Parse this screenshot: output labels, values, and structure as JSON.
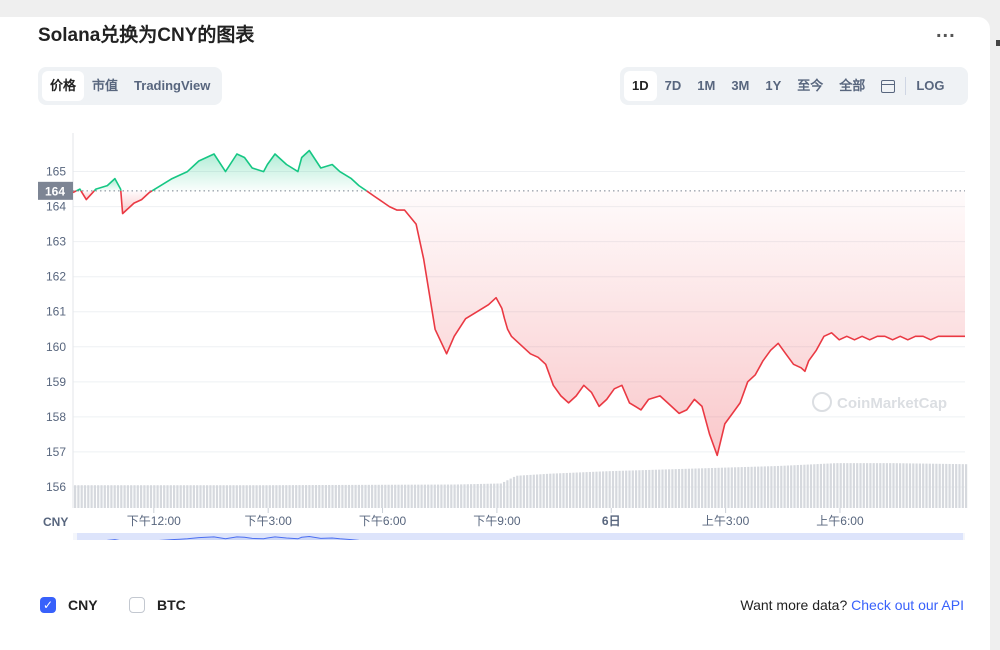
{
  "title": "Solana兑换为CNY的图表",
  "more_label": "...",
  "chart_type_tabs": [
    {
      "label": "价格",
      "active": true
    },
    {
      "label": "市值",
      "active": false
    },
    {
      "label": "TradingView",
      "active": false
    }
  ],
  "range_tabs": [
    {
      "label": "1D",
      "active": true
    },
    {
      "label": "7D",
      "active": false
    },
    {
      "label": "1M",
      "active": false
    },
    {
      "label": "3M",
      "active": false
    },
    {
      "label": "1Y",
      "active": false
    },
    {
      "label": "至今",
      "active": false
    },
    {
      "label": "全部",
      "active": false
    }
  ],
  "calendar_icon": "calendar-icon",
  "log_label": "LOG",
  "legend": [
    {
      "label": "CNY",
      "checked": true
    },
    {
      "label": "BTC",
      "checked": false
    }
  ],
  "api": {
    "text": "Want more data?",
    "link": "Check out our API"
  },
  "watermark": "CoinMarketCap",
  "colors": {
    "up": "#16c784",
    "down": "#ea3943",
    "accent": "#3861fb",
    "volume": "#d6d9de",
    "navigator_fill": "#dde4fb"
  },
  "chart_data": {
    "type": "line",
    "currency_label": "CNY",
    "open_price_label": "164",
    "open_price": 164.45,
    "yticks": [
      165,
      164,
      163,
      162,
      161,
      160,
      159,
      158,
      157,
      156
    ],
    "ylim": [
      155.4,
      166.1
    ],
    "xticks": [
      {
        "label": "下午12:00",
        "x": 2.12
      },
      {
        "label": "下午3:00",
        "x": 5.12
      },
      {
        "label": "下午6:00",
        "x": 8.12
      },
      {
        "label": "下午9:00",
        "x": 11.12
      },
      {
        "label": "6日",
        "x": 14.12
      },
      {
        "label": "上午3:00",
        "x": 17.12
      },
      {
        "label": "上午6:00",
        "x": 20.12
      }
    ],
    "xlim": [
      0,
      23.4
    ],
    "price": {
      "x": [
        0,
        0.18,
        0.35,
        0.6,
        0.9,
        1.1,
        1.25,
        1.3,
        1.5,
        1.6,
        1.8,
        2.0,
        2.3,
        2.6,
        2.8,
        3.0,
        3.3,
        3.7,
        4.0,
        4.3,
        4.5,
        4.7,
        5.0,
        5.1,
        5.3,
        5.6,
        5.9,
        6.0,
        6.2,
        6.5,
        6.8,
        7.0,
        7.3,
        7.5,
        7.9,
        8.3,
        8.5,
        8.7,
        9.0,
        9.2,
        9.5,
        9.8,
        10.0,
        10.3,
        10.6,
        10.9,
        11.1,
        11.25,
        11.32,
        11.4,
        11.5,
        11.6,
        11.8,
        12.0,
        12.2,
        12.4,
        12.6,
        12.8,
        13.0,
        13.2,
        13.4,
        13.6,
        13.8,
        14.0,
        14.2,
        14.4,
        14.6,
        14.9,
        15.1,
        15.4,
        15.6,
        15.9,
        16.1,
        16.3,
        16.5,
        16.7,
        16.9,
        17.1,
        17.3,
        17.5,
        17.7,
        17.9,
        18.1,
        18.3,
        18.5,
        18.7,
        18.9,
        19.1,
        19.2,
        19.3,
        19.5,
        19.7,
        19.9,
        20.1,
        20.3,
        20.5,
        20.7,
        20.9,
        21.1,
        21.3,
        21.5,
        21.7,
        21.9,
        22.1,
        22.3,
        22.5,
        22.7,
        22.9,
        23.1,
        23.3,
        23.4
      ],
      "y": [
        164.4,
        164.5,
        164.2,
        164.5,
        164.6,
        164.8,
        164.5,
        163.8,
        164.0,
        164.1,
        164.2,
        164.4,
        164.6,
        164.8,
        164.9,
        165.0,
        165.3,
        165.5,
        165.0,
        165.5,
        165.4,
        165.1,
        165.0,
        165.2,
        165.5,
        165.2,
        165.0,
        165.4,
        165.6,
        165.1,
        165.2,
        165.0,
        164.8,
        164.6,
        164.3,
        164.0,
        163.9,
        163.9,
        163.5,
        162.5,
        160.5,
        159.8,
        160.3,
        160.8,
        161.0,
        161.2,
        161.4,
        161.1,
        160.8,
        160.5,
        160.3,
        160.2,
        160.0,
        159.8,
        159.7,
        159.5,
        158.9,
        158.6,
        158.4,
        158.6,
        158.9,
        158.7,
        158.3,
        158.5,
        158.8,
        158.9,
        158.4,
        158.2,
        158.5,
        158.6,
        158.4,
        158.1,
        158.2,
        158.5,
        158.3,
        157.5,
        156.9,
        157.8,
        158.1,
        158.4,
        159.0,
        159.2,
        159.6,
        159.9,
        160.1,
        159.8,
        159.5,
        159.4,
        159.3,
        159.6,
        159.9,
        160.3,
        160.4,
        160.2,
        160.3,
        160.2,
        160.3,
        160.2,
        160.3,
        160.3,
        160.2,
        160.3,
        160.2,
        160.3,
        160.3,
        160.2,
        160.3,
        160.3,
        160.3,
        160.3,
        160.3
      ],
      "curve_hint": "approximate shape read from the line"
    },
    "volume": {
      "x": [
        0,
        5,
        10,
        11.2,
        11.6,
        12.5,
        14,
        15.5,
        17,
        18.5,
        20,
        21.5,
        23.4
      ],
      "y": [
        156.05,
        156.05,
        156.07,
        156.1,
        156.32,
        156.38,
        156.45,
        156.5,
        156.55,
        156.6,
        156.68,
        156.68,
        156.65
      ]
    }
  }
}
